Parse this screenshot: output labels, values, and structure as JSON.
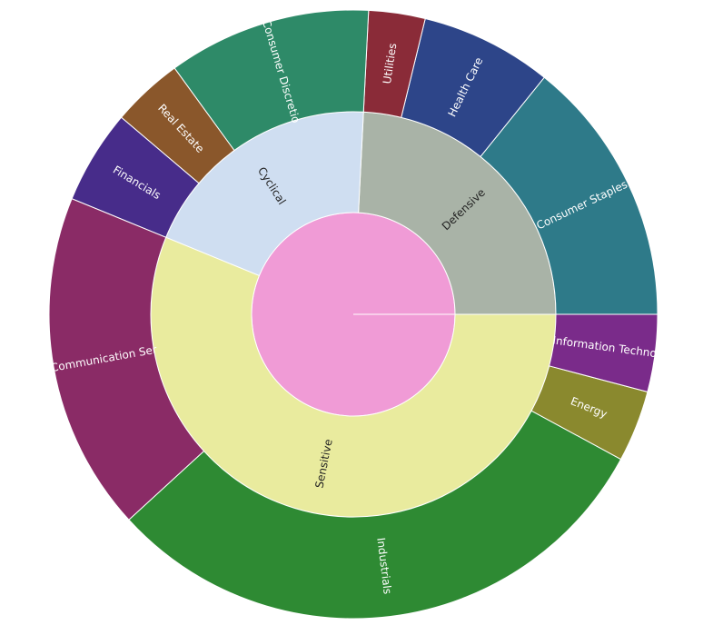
{
  "chart_data": {
    "type": "sunburst",
    "start_angle_deg": 0,
    "direction": "counterclockwise",
    "root": {
      "name": "",
      "color": "#f09bd6"
    },
    "groups": [
      {
        "name": "Defensive",
        "color": "#a9b3a7",
        "label_color": "#222222",
        "children": [
          {
            "name": "Consumer Staples",
            "value": 14.2,
            "color": "#2e7a89",
            "label_color": "#ffffff"
          },
          {
            "name": "Health Care",
            "value": 7.0,
            "color": "#2d4589",
            "label_color": "#ffffff"
          },
          {
            "name": "Utilities",
            "value": 3.0,
            "color": "#8a2b38",
            "label_color": "#ffffff"
          }
        ]
      },
      {
        "name": "Cyclical",
        "color": "#cfdef1",
        "label_color": "#222222",
        "children": [
          {
            "name": "Consumer Discretio",
            "value": 10.8,
            "color": "#2e8a68",
            "label_color": "#ffffff"
          },
          {
            "name": "Real Estate",
            "value": 3.8,
            "color": "#8a572b",
            "label_color": "#ffffff"
          },
          {
            "name": "Financials",
            "value": 5.0,
            "color": "#472c8a",
            "label_color": "#ffffff"
          }
        ]
      },
      {
        "name": "Sensitive",
        "color": "#e9eb9e",
        "label_color": "#222222",
        "children": [
          {
            "name": "Communication Ser",
            "value": 18.0,
            "color": "#8a2b66",
            "label_color": "#ffffff"
          },
          {
            "name": "Industrials",
            "value": 30.3,
            "color": "#2e8a33",
            "label_color": "#ffffff"
          },
          {
            "name": "Energy",
            "value": 3.8,
            "color": "#8a892e",
            "label_color": "#ffffff"
          },
          {
            "name": "Information Techno",
            "value": 4.1,
            "color": "#7a2b8a",
            "label_color": "#ffffff"
          }
        ]
      }
    ]
  }
}
